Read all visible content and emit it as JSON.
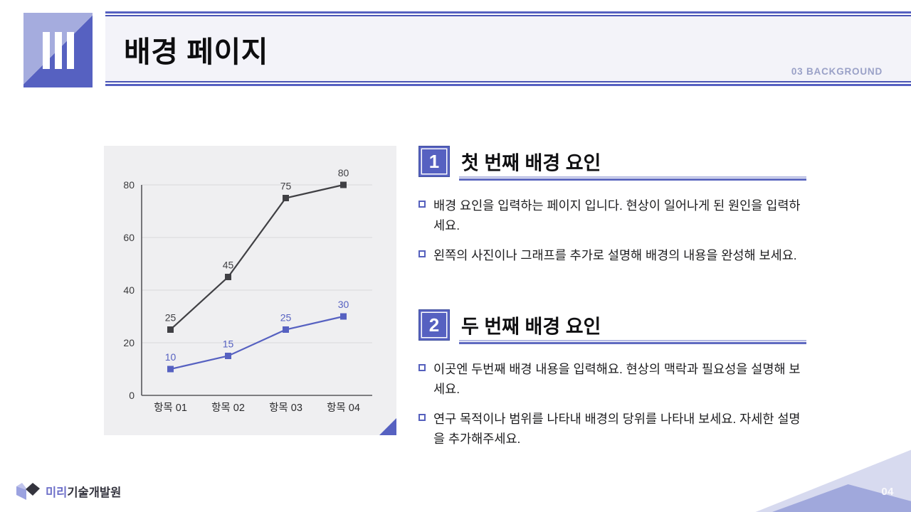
{
  "header": {
    "section_marker": "III",
    "title": "배경 페이지",
    "eyebrow": "03 BACKGROUND"
  },
  "chart_data": {
    "type": "line",
    "categories": [
      "항목 01",
      "항목 02",
      "항목 03",
      "항목 04"
    ],
    "series": [
      {
        "name": "dark-series",
        "color": "#404044",
        "values": [
          25,
          45,
          75,
          80
        ]
      },
      {
        "name": "blue-series",
        "color": "#5661c1",
        "values": [
          10,
          15,
          25,
          30
        ]
      }
    ],
    "title": "",
    "xlabel": "",
    "ylabel": "",
    "ylim": [
      0,
      80
    ],
    "yticks": [
      0,
      20,
      40,
      60,
      80
    ],
    "grid": true,
    "legend": "none",
    "data_labels": true
  },
  "sections": [
    {
      "number": "1",
      "title": "첫 번째 배경 요인",
      "bullets": [
        "배경 요인을 입력하는 페이지 입니다. 현상이 일어나게 된 원인을 입력하세요.",
        "왼쪽의 사진이나 그래프를 추가로 설명해 배경의 내용을 완성해 보세요."
      ]
    },
    {
      "number": "2",
      "title": "두 번째 배경 요인",
      "bullets": [
        "이곳엔 두번째 배경 내용을 입력해요. 현상의 맥락과 필요성을 설명해 보세요.",
        "연구 목적이나 범위를 나타내 배경의 당위를 나타내 보세요. 자세한 설명을 추가해주세요."
      ]
    }
  ],
  "footer": {
    "logo_text_primary": "미리",
    "logo_text_secondary": "기술개발원",
    "page_number": "04"
  },
  "colors": {
    "accent": "#5661c1",
    "accent_dark": "#4a55b4",
    "periwinkle_light": "#a5acde",
    "header_band_bg": "#f3f3f9",
    "eyebrow_text": "#9aa1c7",
    "chart_panel_bg": "#efeff1",
    "series_dark": "#404044",
    "series_blue": "#5661c1",
    "deco_triangle_light": "#d7daef",
    "deco_triangle_medium": "#a0a8dc",
    "logo_purple": "#6d6fc9",
    "logo_dark": "#34343e"
  }
}
